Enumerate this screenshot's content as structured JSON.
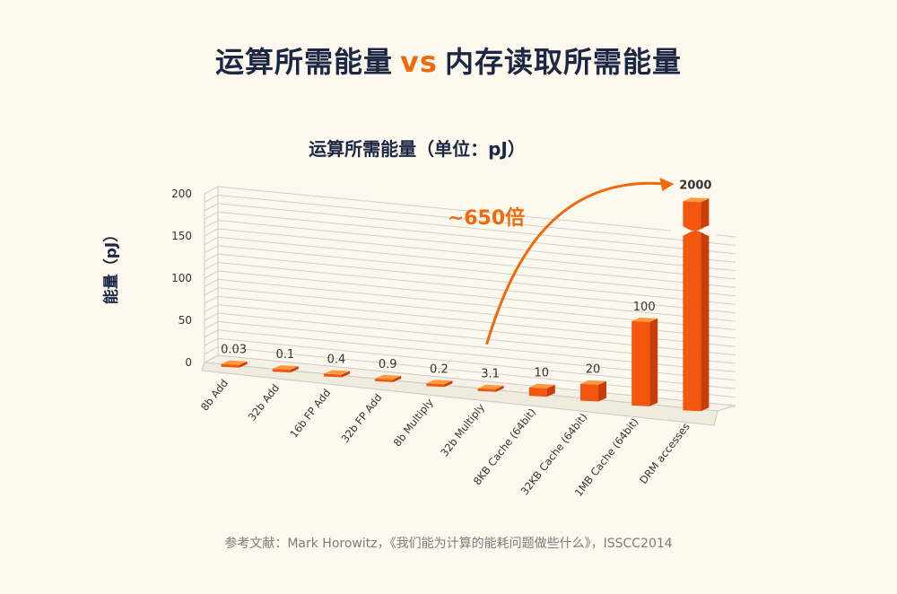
{
  "header": {
    "title_left": "运算所需能量",
    "title_vs": "vs",
    "title_right": "内存读取所需能量"
  },
  "source": "参考文献：Mark Horowitz，《我们能为计算的能耗问题做些什么》，ISSCC2014",
  "colors": {
    "bar_front": "#f3560f",
    "bar_side": "#c93e08",
    "bar_top": "#ff9a3c",
    "accent": "#ef6a0c",
    "title": "#1b2745"
  },
  "chart_data": {
    "type": "bar",
    "title": "运算所需能量（单位：pJ）",
    "ylabel": "能量（pJ）",
    "xlabel": "",
    "ylim": [
      0,
      200
    ],
    "yticks": [
      0,
      50,
      100,
      150,
      200
    ],
    "grid": true,
    "axis_break": true,
    "categories": [
      "8b Add",
      "32b Add",
      "16b FP Add",
      "32b FP Add",
      "8b Multiply",
      "32b Multiply",
      "8KB Cache (64bit)",
      "32KB Cache (64bit)",
      "1MB Cache (64bit)",
      "DRM accesses"
    ],
    "values": [
      0.03,
      0.1,
      0.4,
      0.9,
      0.2,
      3.1,
      10,
      20,
      100,
      2000
    ],
    "value_labels": [
      "0.03",
      "0.1",
      "0.4",
      "0.9",
      "0.2",
      "3.1",
      "10",
      "20",
      "100",
      "2000"
    ],
    "annotation": {
      "text": "~650倍",
      "from": "32b Multiply",
      "to": "DRM accesses"
    }
  }
}
